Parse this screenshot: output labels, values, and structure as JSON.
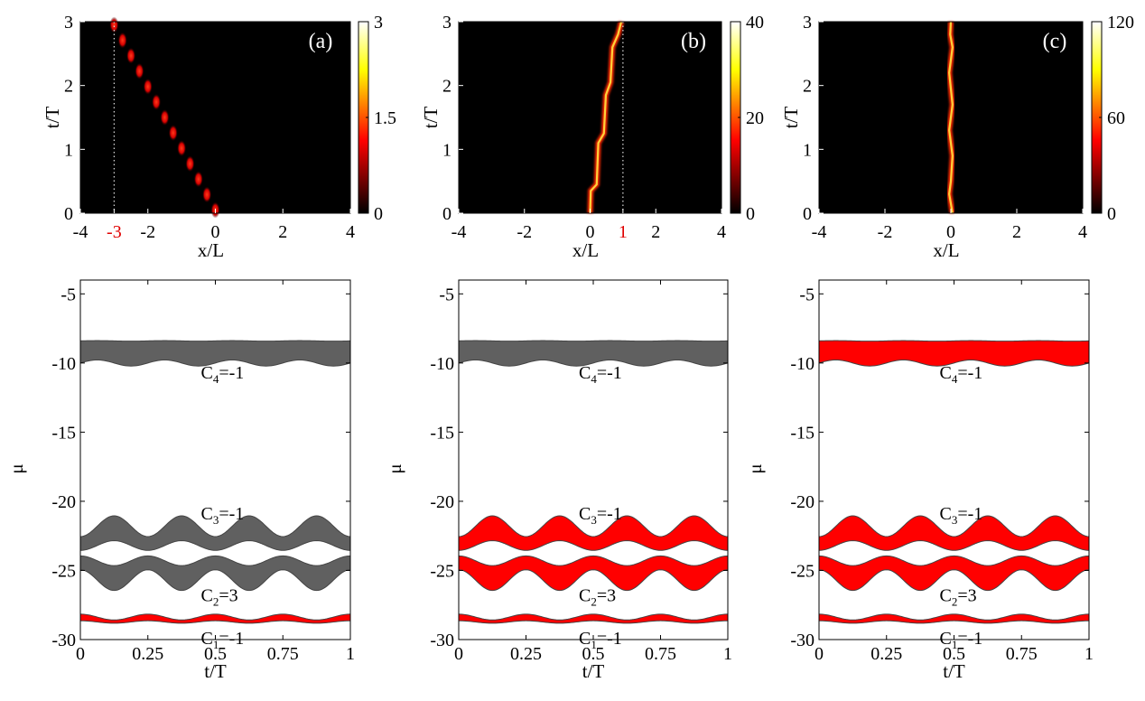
{
  "colors": {
    "red": "#ff0000",
    "gray": "#606060",
    "edge": "#444444",
    "highlight": "#e00000"
  },
  "chart_data": [
    {
      "type": "heatmap",
      "panel": "(a)",
      "xlabel": "x/L",
      "ylabel": "t/T",
      "xlim": [
        -4,
        4
      ],
      "ylim": [
        0,
        3
      ],
      "xticks": [
        "-4",
        "-3",
        "-2",
        "0",
        "2",
        "4"
      ],
      "xtick_values": [
        -4,
        -3,
        -2,
        0,
        2,
        4
      ],
      "highlighted_xtick": "-3",
      "yticks": [
        "0",
        "1",
        "2",
        "3"
      ],
      "colorbar": {
        "ticks": [
          "3",
          "1.5",
          "0"
        ],
        "values": [
          3,
          1.5,
          0
        ],
        "max": 3
      },
      "marker_line_x": -3,
      "trajectory": {
        "x_start": 0,
        "x_end": -3,
        "pulses": 13,
        "style": "discrete-steps"
      }
    },
    {
      "type": "heatmap",
      "panel": "(b)",
      "xlabel": "x/L",
      "ylabel": "t/T",
      "xlim": [
        -4,
        4
      ],
      "ylim": [
        0,
        3
      ],
      "xticks": [
        "-4",
        "-2",
        "0",
        "1",
        "2",
        "4"
      ],
      "xtick_values": [
        -4,
        -2,
        0,
        1,
        2,
        4
      ],
      "highlighted_xtick": "1",
      "yticks": [
        "0",
        "1",
        "2",
        "3"
      ],
      "colorbar": {
        "ticks": [
          "40",
          "20",
          "0"
        ],
        "values": [
          40,
          20,
          0
        ],
        "max": 40
      },
      "marker_line_x": 1,
      "trajectory": {
        "points": [
          [
            0,
            0
          ],
          [
            0.02,
            0.35
          ],
          [
            0.2,
            0.45
          ],
          [
            0.25,
            1.1
          ],
          [
            0.42,
            1.25
          ],
          [
            0.48,
            1.85
          ],
          [
            0.62,
            2.05
          ],
          [
            0.68,
            2.6
          ],
          [
            0.85,
            2.8
          ],
          [
            0.95,
            3.0
          ]
        ]
      }
    },
    {
      "type": "heatmap",
      "panel": "(c)",
      "xlabel": "x/L",
      "ylabel": "t/T",
      "xlim": [
        -4,
        4
      ],
      "ylim": [
        0,
        3
      ],
      "xticks": [
        "-4",
        "-2",
        "0",
        "2",
        "4"
      ],
      "xtick_values": [
        -4,
        -2,
        0,
        2,
        4
      ],
      "yticks": [
        "0",
        "1",
        "2",
        "3"
      ],
      "colorbar": {
        "ticks": [
          "120",
          "60",
          "0"
        ],
        "values": [
          120,
          60,
          0
        ],
        "max": 120
      },
      "trajectory": {
        "points": [
          [
            0.05,
            0
          ],
          [
            -0.05,
            0.3
          ],
          [
            0,
            0.5
          ],
          [
            0.05,
            0.9
          ],
          [
            -0.05,
            1.3
          ],
          [
            0.05,
            1.7
          ],
          [
            -0.05,
            2.2
          ],
          [
            0.05,
            2.6
          ],
          [
            -0.02,
            2.8
          ],
          [
            0.0,
            3.0
          ]
        ]
      }
    },
    {
      "type": "area",
      "xlabel": "t/T",
      "ylabel": "μ",
      "xlim": [
        0,
        1
      ],
      "ylim": [
        -30,
        -4
      ],
      "xticks": [
        "0",
        "0.25",
        "0.5",
        "0.75",
        "1"
      ],
      "xtick_values": [
        0,
        0.25,
        0.5,
        0.75,
        1
      ],
      "yticks": [
        "-5",
        "-10",
        "-15",
        "-20",
        "-25",
        "-30"
      ],
      "ytick_values": [
        -5,
        -10,
        -15,
        -20,
        -25,
        -30
      ],
      "bands": [
        {
          "chern": "-1",
          "index": "4",
          "center": -9.2,
          "half_width": 0.8,
          "osc_amp": 0.12,
          "width_amp": 0.1,
          "osc_cycles": 4,
          "phase": 0.0,
          "width_phase": 0.5,
          "fill": "gray",
          "label_mu": -10.6
        },
        {
          "chern": "-1",
          "index": "3",
          "center": -22.5,
          "half_width": 0.7,
          "osc_amp": 0.55,
          "width_amp": 0.2,
          "osc_cycles": 4,
          "phase": -0.5,
          "width_phase": 1.0,
          "fill": "gray",
          "label_mu": -20.8
        },
        {
          "chern": "3",
          "index": "2",
          "center": -25.0,
          "half_width": 0.7,
          "osc_amp": 0.55,
          "width_amp": 0.2,
          "osc_cycles": 4,
          "phase": 0.5,
          "width_phase": 1.0,
          "fill": "gray",
          "label_mu": -26.7
        },
        {
          "chern": "-1",
          "index": "1",
          "center": -28.55,
          "half_width": 0.18,
          "osc_amp": 0.15,
          "width_amp": 0.06,
          "osc_cycles": 4,
          "phase": 0.5,
          "width_phase": 0.0,
          "fill": "red",
          "label_mu": -29.8
        }
      ]
    },
    {
      "type": "area",
      "xlabel": "t/T",
      "ylabel": "μ",
      "xlim": [
        0,
        1
      ],
      "ylim": [
        -30,
        -4
      ],
      "xticks": [
        "0",
        "0.25",
        "0.5",
        "0.75",
        "1"
      ],
      "xtick_values": [
        0,
        0.25,
        0.5,
        0.75,
        1
      ],
      "yticks": [
        "-5",
        "-10",
        "-15",
        "-20",
        "-25",
        "-30"
      ],
      "ytick_values": [
        -5,
        -10,
        -15,
        -20,
        -25,
        -30
      ],
      "bands": [
        {
          "chern": "-1",
          "index": "4",
          "center": -9.2,
          "half_width": 0.8,
          "osc_amp": 0.12,
          "width_amp": 0.1,
          "osc_cycles": 4,
          "phase": 0.0,
          "width_phase": 0.5,
          "fill": "gray",
          "label_mu": -10.6
        },
        {
          "chern": "-1",
          "index": "3",
          "center": -22.5,
          "half_width": 0.7,
          "osc_amp": 0.55,
          "width_amp": 0.2,
          "osc_cycles": 4,
          "phase": -0.5,
          "width_phase": 1.0,
          "fill": "red",
          "label_mu": -20.8
        },
        {
          "chern": "3",
          "index": "2",
          "center": -25.0,
          "half_width": 0.7,
          "osc_amp": 0.55,
          "width_amp": 0.2,
          "osc_cycles": 4,
          "phase": 0.5,
          "width_phase": 1.0,
          "fill": "red",
          "label_mu": -26.7
        },
        {
          "chern": "-1",
          "index": "1",
          "center": -28.55,
          "half_width": 0.18,
          "osc_amp": 0.15,
          "width_amp": 0.06,
          "osc_cycles": 4,
          "phase": 0.5,
          "width_phase": 0.0,
          "fill": "red",
          "label_mu": -29.8
        }
      ]
    },
    {
      "type": "area",
      "xlabel": "t/T",
      "ylabel": "μ",
      "xlim": [
        0,
        1
      ],
      "ylim": [
        -30,
        -4
      ],
      "xticks": [
        "0",
        "0.25",
        "0.5",
        "0.75",
        "1"
      ],
      "xtick_values": [
        0,
        0.25,
        0.5,
        0.75,
        1
      ],
      "yticks": [
        "-5",
        "-10",
        "-15",
        "-20",
        "-25",
        "-30"
      ],
      "ytick_values": [
        -5,
        -10,
        -15,
        -20,
        -25,
        -30
      ],
      "bands": [
        {
          "chern": "-1",
          "index": "4",
          "center": -9.2,
          "half_width": 0.8,
          "osc_amp": 0.12,
          "width_amp": 0.1,
          "osc_cycles": 4,
          "phase": 0.0,
          "width_phase": 0.5,
          "fill": "red",
          "label_mu": -10.6
        },
        {
          "chern": "-1",
          "index": "3",
          "center": -22.5,
          "half_width": 0.7,
          "osc_amp": 0.55,
          "width_amp": 0.2,
          "osc_cycles": 4,
          "phase": -0.5,
          "width_phase": 1.0,
          "fill": "red",
          "label_mu": -20.8
        },
        {
          "chern": "3",
          "index": "2",
          "center": -25.0,
          "half_width": 0.7,
          "osc_amp": 0.55,
          "width_amp": 0.2,
          "osc_cycles": 4,
          "phase": 0.5,
          "width_phase": 1.0,
          "fill": "red",
          "label_mu": -26.7
        },
        {
          "chern": "-1",
          "index": "1",
          "center": -28.55,
          "half_width": 0.18,
          "osc_amp": 0.15,
          "width_amp": 0.06,
          "osc_cycles": 4,
          "phase": 0.5,
          "width_phase": 0.0,
          "fill": "red",
          "label_mu": -29.8
        }
      ]
    }
  ]
}
